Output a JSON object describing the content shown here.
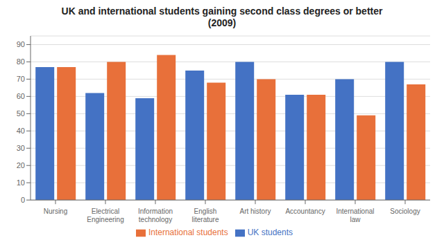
{
  "chart_data": {
    "type": "bar",
    "title": "UK and international students gaining second class degrees or better\n(2009)",
    "categories": [
      "Nursing",
      "Electrical\nEngineering",
      "Information\ntechnology",
      "English\nliterature",
      "Art history",
      "Accountancy",
      "International\nlaw",
      "Sociology"
    ],
    "series": [
      {
        "name": "UK students",
        "color": "#4472C4",
        "values": [
          77,
          62,
          59,
          75,
          80,
          61,
          70,
          80
        ]
      },
      {
        "name": "International students",
        "color": "#E8703A",
        "values": [
          77,
          80,
          84,
          68,
          70,
          61,
          49,
          67
        ]
      }
    ],
    "ylim": [
      0,
      95
    ],
    "yticks": [
      0,
      10,
      20,
      30,
      40,
      50,
      60,
      70,
      80,
      90
    ],
    "grid": true,
    "legend": "bottom"
  }
}
